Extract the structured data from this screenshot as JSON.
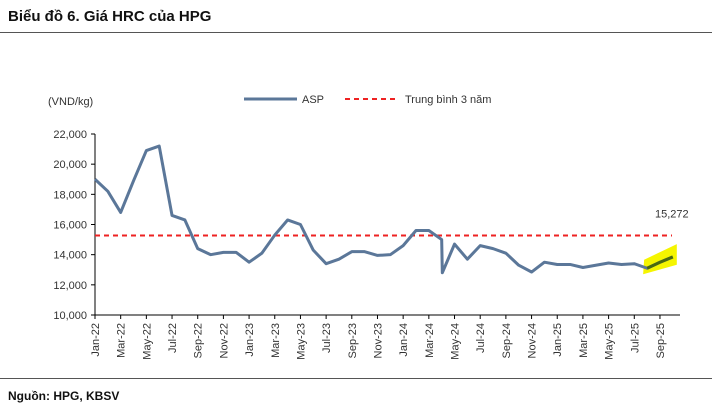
{
  "title": "Biểu đồ 6. Giá HRC của HPG",
  "source": "Nguồn: HPG, KBSV",
  "chart_data": {
    "type": "line",
    "ylabel": "(VND/kg)",
    "ylim": [
      10000,
      22000
    ],
    "yticks": [
      "10,000",
      "12,000",
      "14,000",
      "16,000",
      "18,000",
      "20,000",
      "22,000"
    ],
    "ytick_values": [
      10000,
      12000,
      14000,
      16000,
      18000,
      20000,
      22000
    ],
    "xticks": [
      "Jan-22",
      "Mar-22",
      "May-22",
      "Jul-22",
      "Sep-22",
      "Nov-22",
      "Jan-23",
      "Mar-23",
      "May-23",
      "Jul-23",
      "Sep-23",
      "Nov-23",
      "Jan-24",
      "Mar-24",
      "May-24",
      "Jul-24",
      "Sep-24",
      "Nov-24",
      "Jan-25",
      "Mar-25",
      "May-25",
      "Jul-25",
      "Sep-25"
    ],
    "legend": {
      "placement": "top",
      "entries": [
        "ASP",
        "Trung bình 3 năm"
      ]
    },
    "series": [
      {
        "name": "ASP",
        "color": "#5b7799",
        "x": [
          0,
          1,
          2,
          3,
          4,
          5,
          6,
          7,
          8,
          9,
          10,
          11,
          12,
          13,
          14,
          15,
          16,
          17,
          18,
          19,
          20,
          21,
          22,
          23,
          24,
          25,
          26,
          27,
          27.05,
          28,
          29,
          30,
          31,
          32,
          33,
          34,
          35,
          36,
          37,
          38,
          39,
          40,
          41,
          42,
          43,
          44,
          45
        ],
        "y": [
          19000,
          18200,
          16800,
          18900,
          20900,
          21200,
          16600,
          16300,
          14400,
          14000,
          14150,
          14150,
          13500,
          14100,
          15300,
          16300,
          16000,
          14300,
          13400,
          13700,
          14200,
          14200,
          13950,
          14000,
          14600,
          15600,
          15600,
          15000,
          12800,
          14700,
          13700,
          14600,
          14400,
          14100,
          13300,
          12850,
          13500,
          13350,
          13350,
          13150,
          13300,
          13450,
          13350,
          13400,
          13100,
          13500,
          13850
        ]
      },
      {
        "name": "Trung bình 3 năm",
        "color": "#ee2222",
        "value": 15272
      }
    ],
    "highlight": {
      "from": 43,
      "to": 45,
      "color": "#f5f500",
      "line_color": "#4a6a10"
    },
    "annotation": "15,272"
  }
}
